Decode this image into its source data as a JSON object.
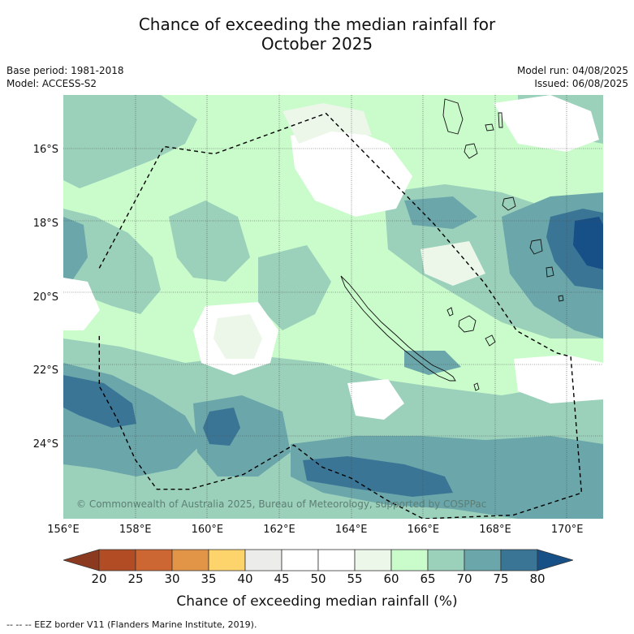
{
  "title": {
    "line1": "Chance of exceeding the median rainfall for",
    "line2": "October 2025"
  },
  "meta": {
    "base_period": "Base period: 1981-2018",
    "model": "Model: ACCESS-S2",
    "model_run": "Model run: 04/08/2025",
    "issued": "Issued: 06/08/2025"
  },
  "map": {
    "lon_range": [
      156.0,
      171.0
    ],
    "lat_range": [
      -26.0,
      -14.5
    ],
    "lat_ticks": [
      "16°S",
      "18°S",
      "20°S",
      "22°S",
      "24°S"
    ],
    "lat_values": [
      -16,
      -18,
      -20,
      -22,
      -24
    ],
    "lon_ticks": [
      "156°E",
      "158°E",
      "160°E",
      "162°E",
      "164°E",
      "166°E",
      "168°E",
      "170°E"
    ],
    "lon_values": [
      156,
      158,
      160,
      162,
      164,
      166,
      168,
      170
    ],
    "gridlines": true,
    "copyright": "© Commonwealth of Australia 2025, Bureau of Meteorology, supported by COSPPac",
    "eez_border": [
      [
        157.0,
        -19.2
      ],
      [
        158.8,
        -15.9
      ],
      [
        160.2,
        -16.1
      ],
      [
        163.3,
        -15.0
      ],
      [
        164.8,
        -16.5
      ],
      [
        166.3,
        -18.0
      ],
      [
        167.7,
        -19.6
      ],
      [
        168.6,
        -20.9
      ],
      [
        169.7,
        -21.5
      ],
      [
        170.1,
        -21.6
      ],
      [
        170.4,
        -25.3
      ],
      [
        168.5,
        -25.9
      ],
      [
        166.0,
        -26.0
      ],
      [
        165.0,
        -25.5
      ],
      [
        164.0,
        -24.9
      ],
      [
        163.2,
        -24.6
      ],
      [
        162.4,
        -24.0
      ],
      [
        161.0,
        -24.8
      ],
      [
        159.5,
        -25.2
      ],
      [
        158.6,
        -25.2
      ],
      [
        158.0,
        -24.4
      ],
      [
        157.5,
        -23.3
      ],
      [
        157.0,
        -22.4
      ],
      [
        157.0,
        -21.0
      ]
    ]
  },
  "colorbar": {
    "title": "Chance of exceeding median rainfall (%)",
    "ticks": [
      "20",
      "25",
      "30",
      "35",
      "40",
      "45",
      "50",
      "55",
      "60",
      "65",
      "70",
      "75",
      "80"
    ],
    "colors": [
      "#8c3a1f",
      "#b14c25",
      "#cc6633",
      "#e29447",
      "#fdd36b",
      "#ececea",
      "#ffffff",
      "#ffffff",
      "#ecf7ea",
      "#c9fbcb",
      "#9bd0bb",
      "#6aa6aa",
      "#3b7596",
      "#174f87"
    ]
  },
  "footnote": "-- -- -- EEZ border V11 (Flanders Marine Institute, 2019)."
}
